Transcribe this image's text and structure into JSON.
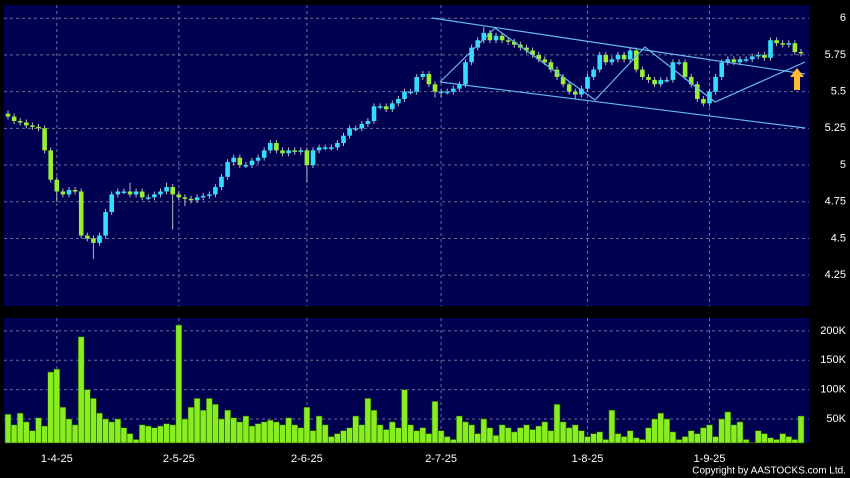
{
  "chart_data": [
    {
      "type": "candlestick",
      "categories": [
        null,
        null,
        null,
        null,
        null,
        null,
        null,
        null,
        "1-4-25",
        null,
        null,
        null,
        null,
        null,
        null,
        null,
        null,
        null,
        null,
        null,
        null,
        null,
        null,
        null,
        null,
        null,
        null,
        null,
        "2-5-25",
        null,
        null,
        null,
        null,
        null,
        null,
        null,
        null,
        null,
        null,
        null,
        null,
        null,
        null,
        null,
        null,
        null,
        null,
        null,
        null,
        "2-6-25",
        null,
        null,
        null,
        null,
        null,
        null,
        null,
        null,
        null,
        null,
        null,
        null,
        null,
        null,
        null,
        null,
        null,
        null,
        null,
        null,
        null,
        "2-7-25",
        null,
        null,
        null,
        null,
        null,
        null,
        null,
        null,
        null,
        null,
        null,
        null,
        null,
        null,
        null,
        null,
        null,
        null,
        null,
        null,
        null,
        null,
        null,
        "1-8-25",
        null,
        null,
        null,
        null,
        null,
        null,
        null,
        null,
        null,
        null,
        null,
        null,
        null,
        null,
        null,
        null,
        null,
        null,
        null,
        "1-9-25",
        null,
        null,
        null,
        null,
        null,
        null,
        null,
        null,
        null,
        null,
        null,
        null,
        null,
        null,
        null
      ],
      "open": [
        5.35,
        5.33,
        5.3,
        5.29,
        5.27,
        5.26,
        5.25,
        5.1,
        4.9,
        4.82,
        4.8,
        4.83,
        4.82,
        4.52,
        4.5,
        4.47,
        4.52,
        4.68,
        4.8,
        4.82,
        4.82,
        4.8,
        4.82,
        4.78,
        4.78,
        4.8,
        4.82,
        4.85,
        4.8,
        4.78,
        4.77,
        4.76,
        4.78,
        4.79,
        4.8,
        4.85,
        4.92,
        5.02,
        5.05,
        5.0,
        5.0,
        5.03,
        5.05,
        5.1,
        5.15,
        5.1,
        5.08,
        5.1,
        5.09,
        5.1,
        5.0,
        5.1,
        5.12,
        5.12,
        5.12,
        5.15,
        5.2,
        5.25,
        5.25,
        5.28,
        5.3,
        5.4,
        5.4,
        5.38,
        5.42,
        5.45,
        5.5,
        5.5,
        5.6,
        5.62,
        5.55,
        5.5,
        5.5,
        5.5,
        5.52,
        5.55,
        5.7,
        5.8,
        5.85,
        5.9,
        5.85,
        5.88,
        5.85,
        5.84,
        5.82,
        5.8,
        5.78,
        5.75,
        5.72,
        5.7,
        5.65,
        5.6,
        5.55,
        5.5,
        5.48,
        5.52,
        5.6,
        5.65,
        5.75,
        5.7,
        5.72,
        5.75,
        5.72,
        5.78,
        5.65,
        5.6,
        5.58,
        5.55,
        5.58,
        5.58,
        5.7,
        5.7,
        5.6,
        5.55,
        5.45,
        5.42,
        5.5,
        5.6,
        5.7,
        5.72,
        5.7,
        5.72,
        5.72,
        5.74,
        5.75,
        5.73,
        5.85,
        5.83,
        5.82,
        5.83,
        5.77
      ],
      "high": [
        5.37,
        5.35,
        5.32,
        5.31,
        5.29,
        5.28,
        5.27,
        5.12,
        4.92,
        4.84,
        4.85,
        4.85,
        4.84,
        4.54,
        4.52,
        4.54,
        4.7,
        4.82,
        4.84,
        4.84,
        4.88,
        4.84,
        4.84,
        4.8,
        4.82,
        4.84,
        4.88,
        4.87,
        4.82,
        4.8,
        4.79,
        4.8,
        4.81,
        4.82,
        4.87,
        4.94,
        5.04,
        5.07,
        5.07,
        5.02,
        5.05,
        5.07,
        5.12,
        5.17,
        5.17,
        5.12,
        5.12,
        5.12,
        5.12,
        5.12,
        5.12,
        5.14,
        5.14,
        5.14,
        5.17,
        5.22,
        5.27,
        5.27,
        5.3,
        5.32,
        5.42,
        5.42,
        5.42,
        5.44,
        5.47,
        5.52,
        5.52,
        5.62,
        5.64,
        5.64,
        5.57,
        5.52,
        5.52,
        5.54,
        5.57,
        5.72,
        5.82,
        5.87,
        5.94,
        5.92,
        5.9,
        5.9,
        5.87,
        5.86,
        5.84,
        5.82,
        5.8,
        5.77,
        5.74,
        5.72,
        5.67,
        5.62,
        5.57,
        5.52,
        5.54,
        5.62,
        5.67,
        5.77,
        5.77,
        5.74,
        5.77,
        5.77,
        5.8,
        5.8,
        5.67,
        5.62,
        5.6,
        5.6,
        5.6,
        5.72,
        5.72,
        5.72,
        5.62,
        5.57,
        5.47,
        5.52,
        5.62,
        5.72,
        5.74,
        5.74,
        5.74,
        5.74,
        5.76,
        5.77,
        5.77,
        5.87,
        5.87,
        5.85,
        5.85,
        5.85,
        5.79
      ],
      "low": [
        5.31,
        5.28,
        5.27,
        5.25,
        5.24,
        5.23,
        5.08,
        4.88,
        4.75,
        4.78,
        4.78,
        4.8,
        4.5,
        4.48,
        4.36,
        4.45,
        4.5,
        4.66,
        4.78,
        4.8,
        4.78,
        4.78,
        4.76,
        4.76,
        4.76,
        4.78,
        4.8,
        4.56,
        4.76,
        4.72,
        4.74,
        4.74,
        4.76,
        4.77,
        4.78,
        4.83,
        4.9,
        5.0,
        4.98,
        4.98,
        4.98,
        5.01,
        5.03,
        5.08,
        5.08,
        5.06,
        5.06,
        5.07,
        5.07,
        4.88,
        4.98,
        5.08,
        5.1,
        5.1,
        5.1,
        5.13,
        5.18,
        5.23,
        5.23,
        5.26,
        5.28,
        5.38,
        5.36,
        5.36,
        5.4,
        5.43,
        5.48,
        5.48,
        5.58,
        5.53,
        5.46,
        5.46,
        5.48,
        5.48,
        5.5,
        5.53,
        5.68,
        5.78,
        5.83,
        5.83,
        5.83,
        5.83,
        5.82,
        5.8,
        5.78,
        5.76,
        5.73,
        5.7,
        5.68,
        5.63,
        5.58,
        5.53,
        5.48,
        5.45,
        5.46,
        5.5,
        5.58,
        5.63,
        5.68,
        5.68,
        5.7,
        5.7,
        5.7,
        5.63,
        5.58,
        5.56,
        5.53,
        5.53,
        5.56,
        5.56,
        5.68,
        5.58,
        5.53,
        5.43,
        5.4,
        5.4,
        5.48,
        5.58,
        5.68,
        5.68,
        5.68,
        5.7,
        5.7,
        5.72,
        5.71,
        5.71,
        5.81,
        5.8,
        5.8,
        5.75,
        5.74
      ],
      "close": [
        5.33,
        5.3,
        5.29,
        5.27,
        5.26,
        5.25,
        5.1,
        4.9,
        4.82,
        4.8,
        4.83,
        4.82,
        4.52,
        4.5,
        4.47,
        4.52,
        4.68,
        4.8,
        4.82,
        4.82,
        4.8,
        4.82,
        4.78,
        4.78,
        4.8,
        4.82,
        4.85,
        4.8,
        4.78,
        4.77,
        4.76,
        4.78,
        4.79,
        4.8,
        4.85,
        4.92,
        5.02,
        5.05,
        5.0,
        5.0,
        5.03,
        5.05,
        5.1,
        5.15,
        5.1,
        5.08,
        5.1,
        5.09,
        5.1,
        5.0,
        5.1,
        5.12,
        5.12,
        5.12,
        5.15,
        5.2,
        5.25,
        5.25,
        5.28,
        5.3,
        5.4,
        5.4,
        5.38,
        5.42,
        5.45,
        5.5,
        5.5,
        5.6,
        5.62,
        5.55,
        5.5,
        5.5,
        5.5,
        5.52,
        5.55,
        5.7,
        5.8,
        5.85,
        5.9,
        5.85,
        5.88,
        5.85,
        5.84,
        5.82,
        5.8,
        5.78,
        5.75,
        5.72,
        5.7,
        5.65,
        5.6,
        5.55,
        5.5,
        5.48,
        5.52,
        5.6,
        5.65,
        5.75,
        5.7,
        5.72,
        5.75,
        5.72,
        5.78,
        5.65,
        5.6,
        5.58,
        5.55,
        5.58,
        5.58,
        5.7,
        5.7,
        5.6,
        5.55,
        5.45,
        5.42,
        5.5,
        5.6,
        5.7,
        5.72,
        5.7,
        5.72,
        5.72,
        5.74,
        5.75,
        5.73,
        5.85,
        5.83,
        5.82,
        5.83,
        5.77,
        5.76
      ],
      "up_color": "#33ddff",
      "down_color": "#99ee33",
      "ylim": [
        4.04,
        6.09
      ],
      "yticks": [
        4.25,
        4.5,
        4.75,
        5,
        5.25,
        5.5,
        5.75,
        6
      ],
      "grid": true
    },
    {
      "type": "bar",
      "values": [
        58000,
        40000,
        60000,
        45000,
        30000,
        52000,
        38000,
        130000,
        135000,
        70000,
        50000,
        40000,
        190000,
        100000,
        85000,
        60000,
        50000,
        45000,
        50000,
        35000,
        25000,
        15000,
        40000,
        38000,
        35000,
        38000,
        42000,
        40000,
        210000,
        50000,
        70000,
        85000,
        65000,
        85000,
        75000,
        50000,
        65000,
        52000,
        45000,
        55000,
        38000,
        42000,
        45000,
        48000,
        45000,
        40000,
        52000,
        40000,
        35000,
        70000,
        30000,
        55000,
        40000,
        20000,
        25000,
        30000,
        35000,
        55000,
        40000,
        85000,
        65000,
        40000,
        32000,
        45000,
        35000,
        100000,
        40000,
        30000,
        35000,
        25000,
        80000,
        30000,
        20000,
        15000,
        55000,
        45000,
        40000,
        25000,
        50000,
        35000,
        22000,
        40000,
        35000,
        28000,
        35000,
        40000,
        32000,
        38000,
        45000,
        30000,
        75000,
        45000,
        35000,
        40000,
        30000,
        20000,
        25000,
        28000,
        15000,
        65000,
        25000,
        20000,
        30000,
        18000,
        15000,
        35000,
        50000,
        60000,
        50000,
        28000,
        15000,
        20000,
        30000,
        25000,
        35000,
        40000,
        20000,
        50000,
        62000,
        40000,
        45000,
        15000,
        10000,
        30000,
        25000,
        18000,
        15000,
        25000,
        20000,
        15000,
        55000
      ],
      "color": "#88ee22",
      "ylim": [
        9000,
        222000
      ],
      "yticks": [
        {
          "value": 50000,
          "label": "50K"
        },
        {
          "value": 100000,
          "label": "100K"
        },
        {
          "value": 150000,
          "label": "150K"
        },
        {
          "value": 200000,
          "label": "200K"
        }
      ],
      "grid": true,
      "annotation": "Copyright by AASTOCKS.com Ltd."
    }
  ]
}
